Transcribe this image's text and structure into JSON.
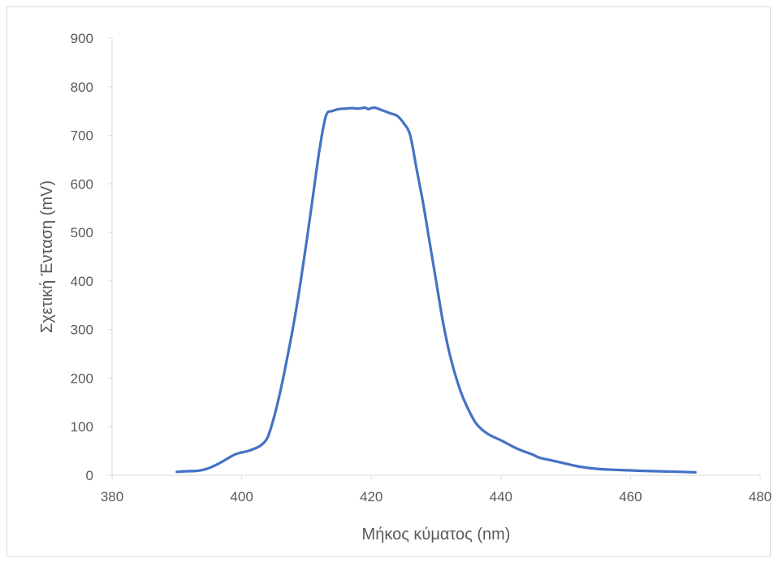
{
  "chart_data": {
    "type": "line",
    "title": "",
    "xlabel": "Μήκος κύματος (nm)",
    "ylabel": "Σχετική Ένταση (mV)",
    "xlim": [
      380,
      480
    ],
    "ylim": [
      0,
      900
    ],
    "xticks": [
      380,
      400,
      420,
      440,
      460,
      480
    ],
    "yticks": [
      0,
      100,
      200,
      300,
      400,
      500,
      600,
      700,
      800,
      900
    ],
    "grid": false,
    "legend": "none",
    "series": [
      {
        "color": "#4472c4",
        "x": [
          390,
          391,
          393,
          394,
          395,
          396,
          397,
          398,
          399,
          400,
          401,
          402,
          403,
          404,
          405,
          406,
          407,
          408,
          409,
          410,
          411,
          412,
          413,
          414,
          415,
          416,
          417,
          418,
          419,
          419.5,
          420,
          420.5,
          421,
          422,
          423,
          424,
          425,
          426,
          427,
          428,
          429,
          430,
          431,
          432,
          433,
          434,
          435,
          436,
          437,
          438,
          439,
          440,
          441,
          442,
          443,
          444,
          445,
          446,
          448,
          450,
          452,
          455,
          458,
          460,
          462,
          465,
          468,
          470
        ],
        "y": [
          7,
          8,
          9,
          11,
          15,
          21,
          28,
          36,
          43,
          47,
          50,
          55,
          62,
          78,
          120,
          175,
          240,
          310,
          390,
          480,
          575,
          670,
          740,
          750,
          754,
          755,
          756,
          755,
          757,
          754,
          756,
          757,
          755,
          750,
          745,
          740,
          725,
          700,
          630,
          560,
          480,
          400,
          320,
          255,
          205,
          165,
          135,
          110,
          95,
          85,
          78,
          72,
          65,
          58,
          52,
          47,
          42,
          36,
          30,
          24,
          18,
          13,
          11,
          10,
          9,
          8,
          7,
          6
        ]
      }
    ]
  }
}
